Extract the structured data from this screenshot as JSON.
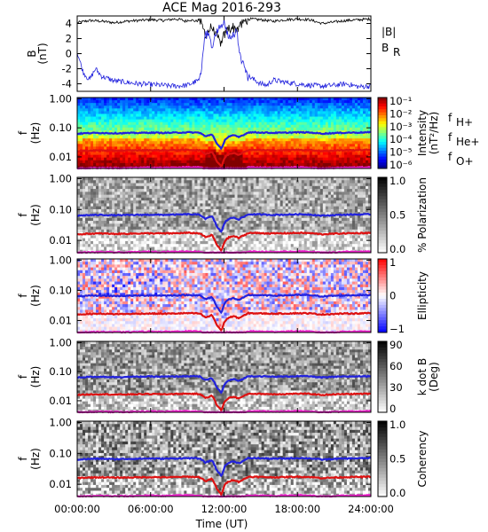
{
  "figure": {
    "title": "ACE Mag 2016-293",
    "xlabel": "Time (UT)",
    "x_ticks": [
      "00:00:00",
      "06:00:00",
      "12:00:00",
      "18:00:00",
      "24:00:00"
    ]
  },
  "legend_top": {
    "line1": "|B|",
    "line2_main": "B",
    "line2_sub": "R",
    "color_line1": "#000000",
    "color_line2": "#2222dd"
  },
  "legend_freq": [
    {
      "main": "f",
      "sub": "H+",
      "color": "#2222dd"
    },
    {
      "main": "f",
      "sub": "He+",
      "color": "#dd1111"
    },
    {
      "main": "f",
      "sub": "O+",
      "color": "#ee22cc"
    }
  ],
  "panel_ylabel": {
    "main": "f",
    "unit": "(Hz)"
  },
  "panel_freq_ticks": [
    "1.00",
    "0.10",
    "0.01"
  ],
  "chart_data": [
    {
      "type": "line",
      "panel": "B",
      "ylabel_main": "B",
      "ylabel_unit": "(nT)",
      "x_range_hours": [
        0,
        24
      ],
      "ylim": [
        -5,
        5
      ],
      "y_ticks": [
        "4",
        "2",
        "0",
        "-2",
        "-4"
      ],
      "series": [
        {
          "name": "|B|",
          "color": "#000000",
          "x": [
            0,
            1,
            2,
            3,
            4,
            5,
            6,
            7,
            8,
            8.5,
            8.8,
            9.2,
            9.7,
            10,
            10.5,
            11,
            11.5,
            11.8,
            12,
            12.3,
            12.7,
            13,
            13.5,
            14,
            15,
            16,
            17,
            18,
            19,
            20,
            21,
            22,
            23,
            24
          ],
          "values": [
            4.1,
            4.4,
            4.3,
            4.1,
            4.3,
            4.4,
            4.5,
            4.4,
            4.6,
            4.5,
            4.3,
            4.5,
            4.3,
            4.5,
            2.5,
            3.5,
            2.0,
            1.2,
            2.5,
            3.2,
            3.6,
            3.2,
            4.0,
            4.6,
            4.5,
            4.3,
            4.5,
            4.6,
            4.5,
            4.0,
            4.2,
            4.4,
            4.5,
            4.6
          ]
        },
        {
          "name": "B_R",
          "color": "#2222dd",
          "x": [
            0,
            0.5,
            1,
            1.5,
            2,
            3,
            4,
            5,
            6,
            7,
            8,
            9,
            10,
            10.5,
            11,
            11.5,
            12,
            12.5,
            13,
            13.5,
            14,
            15,
            15.5,
            16,
            17,
            18,
            19,
            20,
            21,
            22,
            23,
            24
          ],
          "values": [
            0.2,
            -2.5,
            -3.5,
            -2.0,
            -3.0,
            -3.6,
            -3.8,
            -4.0,
            -4.1,
            -4.2,
            -4.3,
            -4.2,
            -3.5,
            3.0,
            1.0,
            3.5,
            4.0,
            2.0,
            3.0,
            -1.0,
            -3.0,
            -4.0,
            -4.2,
            -3.5,
            -3.8,
            -4.0,
            -4.2,
            -4.3,
            -4.2,
            -4.0,
            -4.4,
            -4.3
          ]
        }
      ]
    },
    {
      "type": "heatmap",
      "panel": "Intensity",
      "colorbar_label_1": "Intensity",
      "colorbar_label_2": "(nT²/Hz)",
      "colorbar_ticks": [
        "10⁻¹",
        "10⁻²",
        "10⁻³",
        "10⁻⁴",
        "10⁻⁵",
        "10⁻⁶"
      ],
      "yscale": "log",
      "ylim_hz": [
        0.004,
        1.1
      ],
      "x_range_hours": [
        0,
        24
      ]
    },
    {
      "type": "heatmap",
      "panel": "Polarization",
      "colorbar_label_1": "% Polarization",
      "colorbar_ticks": [
        "1.0",
        "0.5",
        "0.0"
      ],
      "yscale": "log",
      "ylim_hz": [
        0.004,
        1.1
      ]
    },
    {
      "type": "heatmap",
      "panel": "Ellipticity",
      "colorbar_label_1": "Ellipticity",
      "colorbar_ticks": [
        "1",
        "0",
        "−1"
      ],
      "yscale": "log",
      "ylim_hz": [
        0.004,
        1.1
      ]
    },
    {
      "type": "heatmap",
      "panel": "k dot B",
      "colorbar_label_1": "k dot B",
      "colorbar_label_2": "(Deg)",
      "colorbar_ticks": [
        "90",
        "60",
        "30",
        "0"
      ],
      "yscale": "log",
      "ylim_hz": [
        0.004,
        1.1
      ]
    },
    {
      "type": "heatmap",
      "panel": "Coherency",
      "colorbar_label_1": "Coherency",
      "colorbar_ticks": [
        "1.0",
        "0.5",
        "0.0"
      ],
      "yscale": "log",
      "ylim_hz": [
        0.004,
        1.1
      ]
    }
  ],
  "gyrofrequency_lines": {
    "x_hours": [
      0,
      1,
      2,
      3,
      4,
      5,
      6,
      7,
      8,
      9,
      10,
      10.5,
      11,
      11.4,
      11.8,
      12.1,
      12.4,
      12.8,
      13.2,
      13.7,
      14,
      15,
      16,
      17,
      18,
      19,
      20,
      21,
      22,
      23,
      24
    ],
    "fH_hz": [
      0.063,
      0.066,
      0.067,
      0.065,
      0.066,
      0.067,
      0.068,
      0.067,
      0.068,
      0.07,
      0.068,
      0.05,
      0.06,
      0.028,
      0.018,
      0.04,
      0.05,
      0.055,
      0.048,
      0.06,
      0.07,
      0.069,
      0.067,
      0.068,
      0.07,
      0.069,
      0.063,
      0.066,
      0.068,
      0.069,
      0.07
    ],
    "fHe_hz": [
      0.0158,
      0.0165,
      0.0168,
      0.0163,
      0.0165,
      0.0168,
      0.017,
      0.0168,
      0.017,
      0.0175,
      0.017,
      0.0125,
      0.015,
      0.007,
      0.0045,
      0.01,
      0.0125,
      0.0138,
      0.012,
      0.015,
      0.0175,
      0.0172,
      0.0168,
      0.017,
      0.0175,
      0.0172,
      0.0158,
      0.0165,
      0.017,
      0.0172,
      0.0175
    ],
    "fO_hz": [
      0.004,
      0.0041,
      0.0042,
      0.0041,
      0.0041,
      0.0042,
      0.0043,
      0.0042,
      0.0043,
      0.0044,
      0.0043,
      0.004,
      0.004,
      0.004,
      0.004,
      0.004,
      0.004,
      0.004,
      0.004,
      0.004,
      0.0044,
      0.0043,
      0.0042,
      0.0043,
      0.0044,
      0.0043,
      0.004,
      0.0041,
      0.0043,
      0.0043,
      0.0044
    ]
  }
}
